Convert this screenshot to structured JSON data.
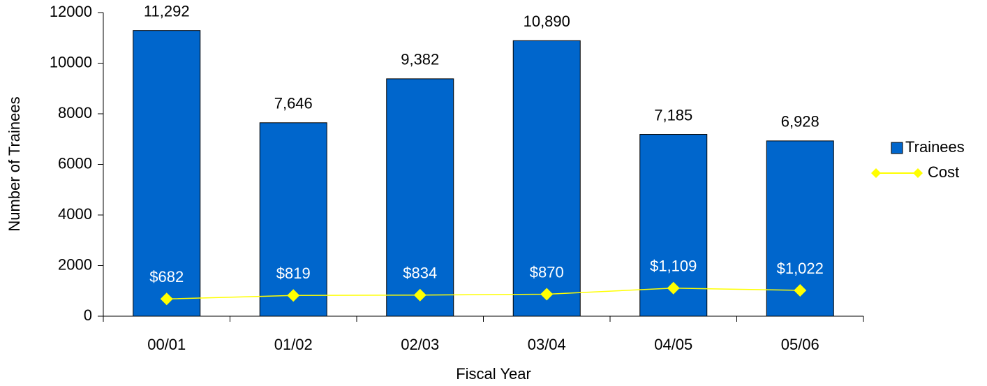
{
  "chart_data": {
    "type": "bar",
    "y_label": "Number of Trainees",
    "x_label": "Fiscal Year",
    "categories": [
      "00/01",
      "01/02",
      "02/03",
      "03/04",
      "04/05",
      "05/06"
    ],
    "series": [
      {
        "name": "Trainees",
        "type": "bar",
        "color": "#0066cc",
        "values": [
          11292,
          7646,
          9382,
          10890,
          7185,
          6928
        ],
        "value_labels": [
          "11,292",
          "7,646",
          "9,382",
          "10,890",
          "7,185",
          "6,928"
        ],
        "label_color": "#000000"
      },
      {
        "name": "Cost",
        "type": "line",
        "color": "#ffff00",
        "values": [
          682,
          819,
          834,
          870,
          1109,
          1022
        ],
        "value_labels": [
          "$682",
          "$819",
          "$834",
          "$870",
          "$1,109",
          "$1,022"
        ],
        "label_color": "#ffffff"
      }
    ],
    "ylim": [
      0,
      12000
    ],
    "yticks": [
      0,
      2000,
      4000,
      6000,
      8000,
      10000,
      12000
    ],
    "grid": false,
    "legend": "right"
  }
}
